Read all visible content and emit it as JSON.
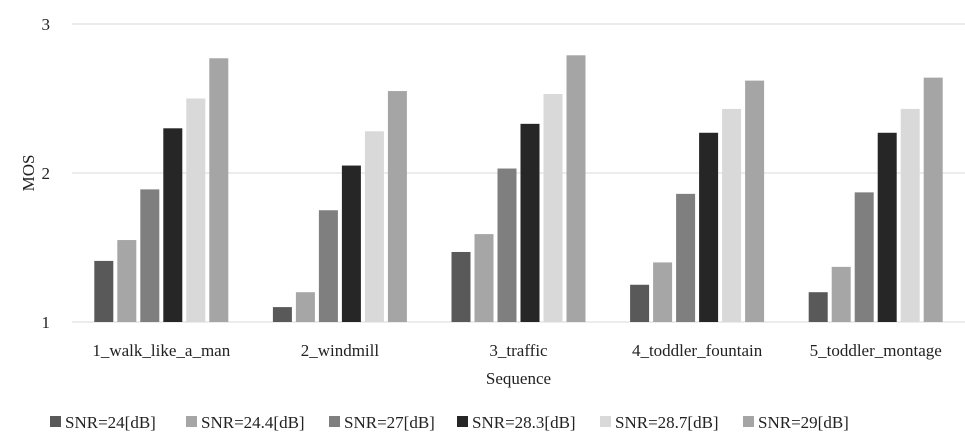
{
  "chart_data": {
    "type": "bar",
    "title": "",
    "xlabel": "Sequence",
    "ylabel": "MOS",
    "ylim": [
      1,
      3
    ],
    "yticks": [
      "1",
      "2",
      "3"
    ],
    "grid": true,
    "legend_position": "bottom",
    "categories": [
      "1_walk_like_a_man",
      "2_windmill",
      "3_traffic",
      "4_toddler_fountain",
      "5_toddler_montage"
    ],
    "series": [
      {
        "name": "SNR=24[dB]",
        "color": "#595959",
        "values": [
          1.41,
          1.1,
          1.47,
          1.25,
          1.2
        ]
      },
      {
        "name": "SNR=24.4[dB]",
        "color": "#a6a6a6",
        "values": [
          1.55,
          1.2,
          1.59,
          1.4,
          1.37
        ]
      },
      {
        "name": "SNR=27[dB]",
        "color": "#7f7f7f",
        "values": [
          1.89,
          1.75,
          2.03,
          1.86,
          1.87
        ]
      },
      {
        "name": "SNR=28.3[dB]",
        "color": "#262626",
        "values": [
          2.3,
          2.05,
          2.33,
          2.27,
          2.27
        ]
      },
      {
        "name": "SNR=28.7[dB]",
        "color": "#d9d9d9",
        "values": [
          2.5,
          2.28,
          2.53,
          2.43,
          2.43
        ]
      },
      {
        "name": "SNR=29[dB]",
        "color": "#a5a5a5",
        "values": [
          2.77,
          2.55,
          2.79,
          2.62,
          2.64
        ]
      }
    ]
  }
}
